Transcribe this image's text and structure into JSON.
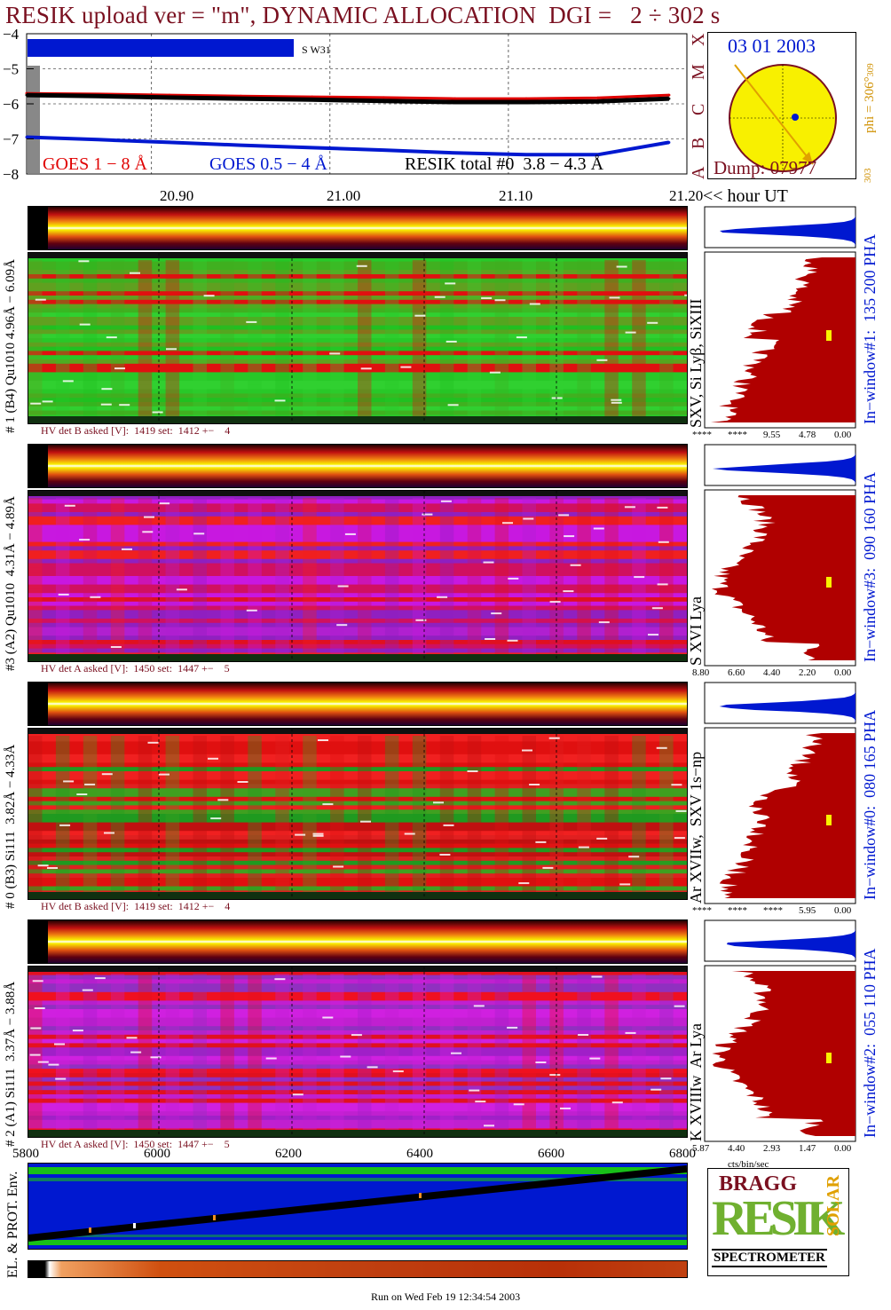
{
  "title": "RESIK upload ver = \"m\", DYNAMIC ALLOCATION  DGI =   2 ÷ 302 s",
  "goes_panel": {
    "yticks": [
      "−4",
      "−5",
      "−6",
      "−7",
      "−8"
    ],
    "class_labels": [
      "X",
      "M",
      "C",
      "B",
      "A"
    ],
    "s_w_label": "S W31",
    "legend_goes18": "GOES 1 − 8 Å",
    "legend_goes054": "GOES 0.5 − 4 Å",
    "legend_resik": "RESIK total #0  3.8 − 4.3 Å",
    "time_ticks": [
      "20.90",
      "21.00",
      "21.10",
      "21.20"
    ],
    "hour_label": "<< hour UT"
  },
  "sun_panel": {
    "date": "03 01 2003",
    "dump": "Dump: 07977",
    "phi": "phi = 306°",
    "phi_sub": "309",
    "phi_low": "303"
  },
  "channels": [
    {
      "left_label": "# 1 (B4) Qu1010 4.96Å − 6.09Å",
      "lines_label": "SXV, Si Lyβ, SiXIII",
      "window_label": "In−window#1:  135 200 PHA",
      "hv_label": "HV det B asked [V]:  1419 set:  1412 +−    4",
      "axis_ticks": [
        "****",
        "****",
        "9.55",
        "4.78",
        "0.00"
      ],
      "scheme": "green"
    },
    {
      "left_label": "#3 (A2) Qu1010  4.31Å − 4.89Å",
      "lines_label": "S XVI Lya",
      "window_label": "In−window#3:  090 160 PHA",
      "hv_label": "HV det A asked [V]:  1450 set:  1447 +−    5",
      "axis_ticks": [
        "8.80",
        "6.60",
        "4.40",
        "2.20",
        "0.00"
      ],
      "scheme": "magenta"
    },
    {
      "left_label": "# 0 (B3) Si111  3.82Å − 4.33Å",
      "lines_label": "Ar XVIIw,  SXV 1s−np",
      "window_label": "In−window#0:  080 165 PHA",
      "hv_label": "HV det B asked [V]:  1419 set:  1412 +−    4",
      "axis_ticks": [
        "****",
        "****",
        "****",
        "5.95",
        "0.00"
      ],
      "scheme": "mixed"
    },
    {
      "left_label": "# 2 (A1) Si111  3.37Å − 3.88Å",
      "lines_label": "K XVIIIw  Ar Lya",
      "window_label": "In−window#2:  055 110 PHA",
      "hv_label": "HV det A asked [V]:  1450 set:  1447 +−    5",
      "axis_ticks": [
        "5.87",
        "4.40",
        "2.93",
        "1.47",
        "0.00"
      ],
      "scheme": "magenta2"
    }
  ],
  "cts_label": "cts/bin/sec",
  "bottom_axis_ticks": [
    "5800",
    "6000",
    "6200",
    "6400",
    "6600",
    "6800"
  ],
  "env_label": "EL. & PROT. Env.",
  "run_label": "Run on Wed Feb 19 12:34:54 2003",
  "logo": {
    "top": "BRAGG",
    "mid": "RESIK",
    "side": "SOLAR",
    "bottom": "SPECTROMETER"
  },
  "colors": {
    "title": "#7a1020",
    "goes18": "#e00000",
    "goes054": "#0018d0",
    "histogram": "#b00000",
    "histogram_top": "#0018d0"
  },
  "chart_data": {
    "type": "line",
    "title": "RESIK upload ver = \"m\", DYNAMIC ALLOCATION  DGI =   2 ÷ 302 s",
    "xlabel": "hour UT",
    "ylabel": "",
    "xlim": [
      20.83,
      21.2
    ],
    "ylim": [
      -8,
      -4
    ],
    "x": [
      20.83,
      20.87,
      20.91,
      20.95,
      20.99,
      21.03,
      21.07,
      21.11,
      21.15,
      21.19
    ],
    "series": [
      {
        "name": "GOES 1 − 8 Å",
        "values": [
          -5.7,
          -5.72,
          -5.75,
          -5.78,
          -5.8,
          -5.82,
          -5.85,
          -5.85,
          -5.83,
          -5.75
        ]
      },
      {
        "name": "GOES 0.5 − 4 Å",
        "values": [
          -6.95,
          -7.02,
          -7.1,
          -7.18,
          -7.25,
          -7.32,
          -7.4,
          -7.45,
          -7.45,
          -7.1
        ]
      },
      {
        "name": "RESIK total #0  3.8 − 4.3 Å",
        "values": [
          -5.75,
          -5.78,
          -5.82,
          -5.85,
          -5.88,
          -5.92,
          -5.95,
          -5.95,
          -5.93,
          -5.85
        ]
      }
    ]
  }
}
